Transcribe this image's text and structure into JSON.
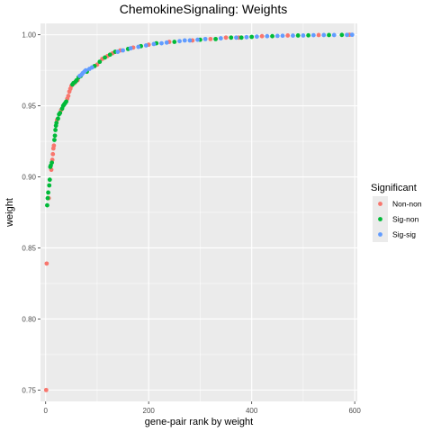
{
  "chart_data": {
    "type": "scatter",
    "title": "ChemokineSignaling: Weights",
    "xlabel": "gene-pair rank by weight",
    "ylabel": "weight",
    "xlim": [
      -10,
      605
    ],
    "ylim": [
      0.742,
      1.008
    ],
    "x_ticks": [
      0,
      200,
      400,
      600
    ],
    "x_tick_labels": [
      "0",
      "200",
      "400",
      "600"
    ],
    "y_ticks": [
      0.75,
      0.8,
      0.85,
      0.9,
      0.95,
      1.0
    ],
    "y_tick_labels": [
      "0.75",
      "0.80",
      "0.85",
      "0.90",
      "0.95",
      "1.00"
    ],
    "grid": true,
    "legend_position": "right",
    "legend": {
      "title": "Significant",
      "entries": [
        "Non-non",
        "Sig-non",
        "Sig-sig"
      ]
    },
    "colors": {
      "Non-non": "#F8766D",
      "Sig-non": "#00BA38",
      "Sig-sig": "#619CFF",
      "panel": "#EBEBEB",
      "grid": "#FFFFFF"
    },
    "n_points": 595,
    "series": [
      {
        "name": "Non-non",
        "points": [
          [
            1,
            0.75
          ],
          [
            2,
            0.839
          ],
          [
            6,
            0.885
          ],
          [
            11,
            0.905
          ],
          [
            13,
            0.912
          ],
          [
            14,
            0.916
          ],
          [
            15,
            0.92
          ],
          [
            16,
            0.922
          ],
          [
            22,
            0.94
          ],
          [
            30,
            0.947
          ],
          [
            42,
            0.955
          ],
          [
            44,
            0.957
          ],
          [
            46,
            0.96
          ],
          [
            48,
            0.962
          ],
          [
            50,
            0.964
          ],
          [
            56,
            0.966
          ],
          [
            62,
            0.968
          ],
          [
            100,
            0.979
          ],
          [
            110,
            0.983
          ],
          [
            120,
            0.985
          ],
          [
            130,
            0.987
          ],
          [
            145,
            0.989
          ],
          [
            170,
            0.991
          ],
          [
            200,
            0.993
          ],
          [
            240,
            0.995
          ],
          [
            285,
            0.996
          ],
          [
            320,
            0.997
          ],
          [
            350,
            0.998
          ],
          [
            375,
            0.998
          ],
          [
            420,
            0.999
          ],
          [
            470,
            0.9995
          ],
          [
            530,
            0.9998
          ],
          [
            590,
            1.0
          ]
        ]
      },
      {
        "name": "Sig-non",
        "points": [
          [
            3,
            0.88
          ],
          [
            4,
            0.885
          ],
          [
            5,
            0.889
          ],
          [
            7,
            0.894
          ],
          [
            8,
            0.898
          ],
          [
            9,
            0.907
          ],
          [
            10,
            0.908
          ],
          [
            12,
            0.91
          ],
          [
            17,
            0.926
          ],
          [
            18,
            0.929
          ],
          [
            19,
            0.933
          ],
          [
            20,
            0.936
          ],
          [
            21,
            0.938
          ],
          [
            24,
            0.941
          ],
          [
            26,
            0.944
          ],
          [
            28,
            0.945
          ],
          [
            32,
            0.948
          ],
          [
            34,
            0.95
          ],
          [
            36,
            0.951
          ],
          [
            38,
            0.952
          ],
          [
            40,
            0.953
          ],
          [
            52,
            0.965
          ],
          [
            54,
            0.966
          ],
          [
            58,
            0.967
          ],
          [
            60,
            0.968
          ],
          [
            64,
            0.97
          ],
          [
            68,
            0.971
          ],
          [
            80,
            0.974
          ],
          [
            95,
            0.978
          ],
          [
            105,
            0.981
          ],
          [
            115,
            0.984
          ],
          [
            125,
            0.986
          ],
          [
            135,
            0.988
          ],
          [
            160,
            0.99
          ],
          [
            185,
            0.992
          ],
          [
            215,
            0.994
          ],
          [
            250,
            0.995
          ],
          [
            300,
            0.9965
          ],
          [
            330,
            0.997
          ],
          [
            360,
            0.998
          ],
          [
            380,
            0.998
          ],
          [
            400,
            0.9985
          ],
          [
            440,
            0.999
          ],
          [
            490,
            0.9995
          ],
          [
            510,
            0.9996
          ],
          [
            550,
            0.9998
          ],
          [
            575,
            0.9999
          ]
        ]
      },
      {
        "name": "Sig-sig",
        "points": [
          [
            66,
            0.971
          ],
          [
            70,
            0.972
          ],
          [
            72,
            0.973
          ],
          [
            75,
            0.974
          ],
          [
            78,
            0.975
          ],
          [
            85,
            0.976
          ],
          [
            90,
            0.977
          ],
          [
            140,
            0.988
          ],
          [
            150,
            0.989
          ],
          [
            165,
            0.9905
          ],
          [
            180,
            0.9915
          ],
          [
            195,
            0.9925
          ],
          [
            210,
            0.9935
          ],
          [
            225,
            0.994
          ],
          [
            235,
            0.9945
          ],
          [
            260,
            0.9955
          ],
          [
            270,
            0.996
          ],
          [
            280,
            0.996
          ],
          [
            295,
            0.9965
          ],
          [
            310,
            0.997
          ],
          [
            340,
            0.9975
          ],
          [
            370,
            0.998
          ],
          [
            390,
            0.9983
          ],
          [
            410,
            0.9987
          ],
          [
            430,
            0.999
          ],
          [
            450,
            0.9992
          ],
          [
            460,
            0.9993
          ],
          [
            480,
            0.9994
          ],
          [
            500,
            0.9995
          ],
          [
            520,
            0.9997
          ],
          [
            540,
            0.9998
          ],
          [
            560,
            0.9998
          ],
          [
            585,
            0.9999
          ],
          [
            595,
            1.0
          ]
        ]
      }
    ]
  }
}
